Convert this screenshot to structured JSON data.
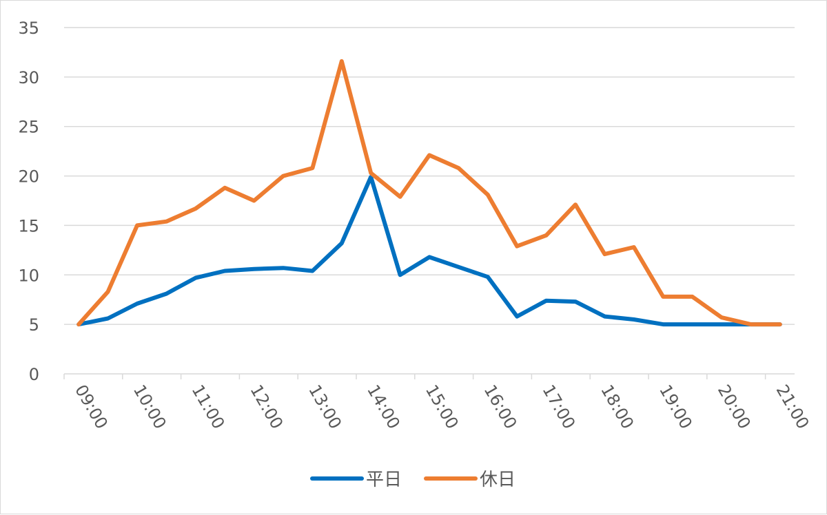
{
  "chart_data": {
    "type": "line",
    "title": "",
    "xlabel": "",
    "ylabel": "",
    "ylim": [
      0,
      35
    ],
    "yticks": [
      0,
      5,
      10,
      15,
      20,
      25,
      30,
      35
    ],
    "grid": true,
    "legend_position": "bottom",
    "x_tick_labels": [
      "09:00",
      "10:00",
      "11:00",
      "12:00",
      "13:00",
      "14:00",
      "15:00",
      "16:00",
      "17:00",
      "18:00",
      "19:00",
      "20:00",
      "21:00"
    ],
    "x": [
      "09:00",
      "09:30",
      "10:00",
      "10:30",
      "11:00",
      "11:30",
      "12:00",
      "12:30",
      "13:00",
      "13:30",
      "14:00",
      "14:30",
      "15:00",
      "15:30",
      "16:00",
      "16:30",
      "17:00",
      "17:30",
      "18:00",
      "18:30",
      "19:00",
      "19:30",
      "20:00",
      "20:30",
      "21:00"
    ],
    "series": [
      {
        "name": "平日",
        "color": "#0070c0",
        "values": [
          5.0,
          5.6,
          7.1,
          8.1,
          9.7,
          10.4,
          10.6,
          10.7,
          10.4,
          13.2,
          19.9,
          10.0,
          11.8,
          10.8,
          9.8,
          5.8,
          7.4,
          7.3,
          5.8,
          5.5,
          5.0,
          5.0,
          5.0,
          5.0,
          5.0
        ]
      },
      {
        "name": "休日",
        "color": "#ed7d31",
        "values": [
          5.0,
          8.3,
          15.0,
          15.4,
          16.7,
          18.8,
          17.5,
          20.0,
          20.8,
          31.6,
          20.3,
          17.9,
          22.1,
          20.8,
          18.1,
          12.9,
          14.0,
          17.1,
          12.1,
          12.8,
          7.8,
          7.8,
          5.7,
          5.0,
          5.0
        ]
      }
    ]
  }
}
